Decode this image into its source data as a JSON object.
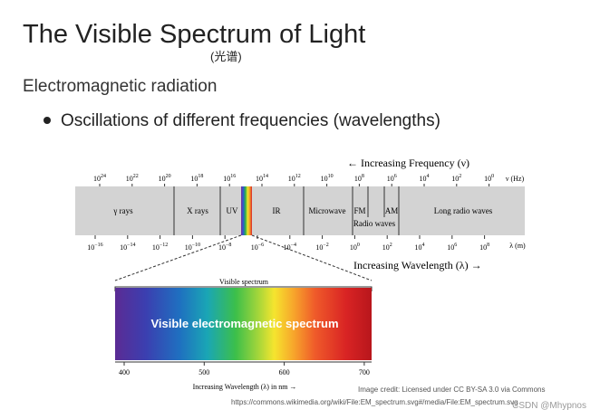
{
  "header": {
    "title": "The Visible Spectrum of Light",
    "subtitle": "(光谱)"
  },
  "body": {
    "heading": "Electromagnetic radiation",
    "bullets": [
      "Oscillations of different frequencies (wavelengths)"
    ]
  },
  "diagram": {
    "frequency_caption": "← Increasing Frequency (ν)",
    "frequency_ticks": [
      {
        "base": "10",
        "exp": "24"
      },
      {
        "base": "10",
        "exp": "22"
      },
      {
        "base": "10",
        "exp": "20"
      },
      {
        "base": "10",
        "exp": "18"
      },
      {
        "base": "10",
        "exp": "16"
      },
      {
        "base": "10",
        "exp": "14"
      },
      {
        "base": "10",
        "exp": "12"
      },
      {
        "base": "10",
        "exp": "10"
      },
      {
        "base": "10",
        "exp": "8"
      },
      {
        "base": "10",
        "exp": "6"
      },
      {
        "base": "10",
        "exp": "4"
      },
      {
        "base": "10",
        "exp": "2"
      },
      {
        "base": "10",
        "exp": "0"
      }
    ],
    "frequency_unit": "ν (Hz)",
    "bands": [
      "γ rays",
      "X rays",
      "UV",
      "IR",
      "Microwave",
      "FM",
      "AM",
      "Radio waves",
      "Long radio waves"
    ],
    "wavelength_ticks": [
      {
        "base": "10",
        "exp": "−16"
      },
      {
        "base": "10",
        "exp": "−14"
      },
      {
        "base": "10",
        "exp": "−12"
      },
      {
        "base": "10",
        "exp": "−10"
      },
      {
        "base": "10",
        "exp": "−8"
      },
      {
        "base": "10",
        "exp": "−6"
      },
      {
        "base": "10",
        "exp": "−4"
      },
      {
        "base": "10",
        "exp": "−2"
      },
      {
        "base": "10",
        "exp": "0"
      },
      {
        "base": "10",
        "exp": "2"
      },
      {
        "base": "10",
        "exp": "4"
      },
      {
        "base": "10",
        "exp": "6"
      },
      {
        "base": "10",
        "exp": "8"
      }
    ],
    "wavelength_unit": "λ (m)",
    "wavelength_caption": "Increasing Wavelength (λ) →",
    "visible_label": "Visible spectrum",
    "visible_title": "Visible electromagnetic spectrum",
    "nm_ticks": [
      400,
      500,
      600,
      700
    ],
    "nm_caption": "Increasing Wavelength (λ) in nm →"
  },
  "credit": {
    "line1": "Image credit: Licensed under CC BY-SA 3.0 via Commons",
    "line2": "https://commons.wikimedia.org/wiki/File:EM_spectrum.svg#/media/File:EM_spectrum.svg"
  },
  "watermark": "CSDN @Mhypnos"
}
